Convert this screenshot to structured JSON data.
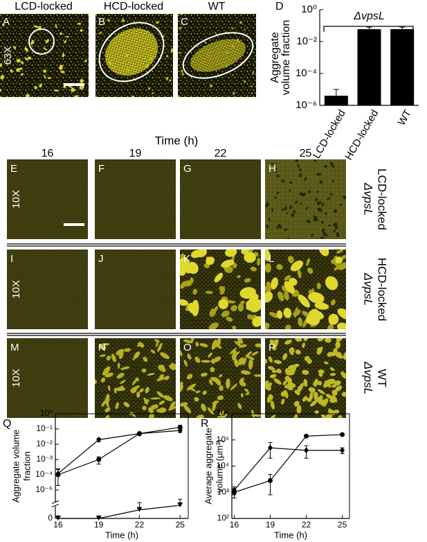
{
  "top_panels": {
    "letters": [
      "A",
      "B",
      "C"
    ],
    "labels": [
      "LCD-locked",
      "HCD-locked",
      "WT"
    ],
    "magnification": "63X"
  },
  "time_panels": {
    "title": "Time (h)",
    "columns": [
      "16",
      "19",
      "22",
      "25"
    ],
    "letters": [
      [
        "E",
        "F",
        "G",
        "H"
      ],
      [
        "I",
        "J",
        "K",
        "L"
      ],
      [
        "M",
        "N",
        "O",
        "P"
      ]
    ],
    "magnification": "10X",
    "row_labels": [
      [
        "ΔvpsL",
        "LCD-locked"
      ],
      [
        "ΔvpsL",
        "HCD-locked"
      ],
      [
        "ΔvpsL",
        "WT"
      ]
    ]
  },
  "chart_data": [
    {
      "type": "bar",
      "panel_label": "D",
      "categories": [
        "LCD-locked",
        "HCD-locked",
        "WT"
      ],
      "values": [
        4e-06,
        0.06,
        0.06
      ],
      "errors": [
        6e-06,
        0.02,
        0.02
      ],
      "color": "#000000",
      "log_y": true,
      "ylim": [
        1e-06,
        1
      ],
      "yticks": [
        {
          "value": 1e-06,
          "label": "10⁻⁶"
        },
        {
          "value": 0.0001,
          "label": "10⁻⁴"
        },
        {
          "value": 0.01,
          "label": "10⁻²"
        },
        {
          "value": 1,
          "label": "10⁰"
        }
      ],
      "ylabel": [
        "Aggregate",
        "volume fraction"
      ],
      "annotation": "ΔvpsL"
    },
    {
      "type": "line",
      "panel_label": "Q",
      "x": [
        16,
        19,
        22,
        25
      ],
      "xlim": [
        15.8,
        25.6
      ],
      "xticks": [
        16,
        19,
        22,
        25
      ],
      "log_y": true,
      "axis_break": true,
      "ylim": [
        0,
        1
      ],
      "yticks": [
        0,
        {
          "value": 1e-05,
          "label": "10⁻⁵"
        },
        {
          "value": 0.0001,
          "label": "10⁻⁴"
        },
        {
          "value": 0.001,
          "label": "10⁻³"
        },
        {
          "value": 0.01,
          "label": "10⁻²"
        },
        {
          "value": 0.1,
          "label": "10⁻¹"
        },
        {
          "value": 1,
          "label": "10⁰"
        }
      ],
      "xlabel": "Time (h)",
      "ylabel": [
        "Aggregate volume",
        "fraction"
      ],
      "series": [
        {
          "marker": "circle",
          "color": "#000000",
          "values": [
            0.0001,
            0.001,
            0.05,
            0.13
          ],
          "errors": [
            0.00015,
            0.0005,
            0.01,
            0.05
          ]
        },
        {
          "marker": "diamond",
          "color": "#000000",
          "values": [
            0.00012,
            0.02,
            0.05,
            0.08
          ],
          "errors": [
            0.0001,
            0.005,
            0.01,
            0.02
          ]
        },
        {
          "marker": "triangle",
          "color": "#000000",
          "values": [
            0,
            0,
            5e-07,
            1e-06
          ],
          "errors": [
            0,
            0,
            1e-06,
            1.5e-06
          ]
        }
      ]
    },
    {
      "type": "line",
      "panel_label": "R",
      "x": [
        16,
        19,
        22,
        25
      ],
      "xlim": [
        15.8,
        25.6
      ],
      "xticks": [
        16,
        19,
        22,
        25
      ],
      "log_y": true,
      "ylim": [
        100,
        1000000
      ],
      "yticks": [
        {
          "value": 100,
          "label": "10²"
        },
        {
          "value": 1000,
          "label": "10³"
        },
        {
          "value": 10000,
          "label": "10⁴"
        },
        {
          "value": 100000,
          "label": "10⁵"
        },
        {
          "value": 1000000,
          "label": "10⁶"
        }
      ],
      "xlabel": "Time (h)",
      "ylabel": [
        "Average aggregate",
        "volume (μm³)"
      ],
      "series": [
        {
          "marker": "circle",
          "color": "#000000",
          "values": [
            1000,
            2800,
            140000,
            160000
          ],
          "errors": [
            400,
            2000,
            0,
            0
          ]
        },
        {
          "marker": "diamond",
          "color": "#000000",
          "values": [
            1200,
            50000,
            40000,
            40000
          ],
          "errors": [
            400,
            30000,
            20000,
            10000
          ]
        }
      ]
    }
  ]
}
